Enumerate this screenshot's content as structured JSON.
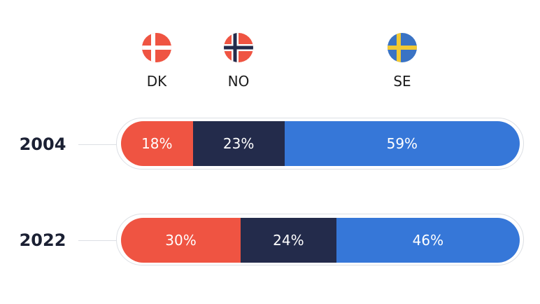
{
  "colors": {
    "DK": "#ef5442",
    "NO": "#232b4b",
    "SE": "#3677d8"
  },
  "legend": [
    {
      "code": "DK",
      "icon": "denmark-flag-icon"
    },
    {
      "code": "NO",
      "icon": "norway-flag-icon"
    },
    {
      "code": "SE",
      "icon": "sweden-flag-icon"
    }
  ],
  "chart_data": {
    "type": "bar",
    "orientation": "horizontal",
    "stacked": true,
    "normalized_percent": true,
    "categories": [
      "2004",
      "2022"
    ],
    "series": [
      {
        "name": "DK",
        "values": [
          18,
          30
        ],
        "labels": [
          "18%",
          "30%"
        ]
      },
      {
        "name": "NO",
        "values": [
          23,
          24
        ],
        "labels": [
          "23%",
          "24%"
        ]
      },
      {
        "name": "SE",
        "values": [
          59,
          46
        ],
        "labels": [
          "59%",
          "46%"
        ]
      }
    ],
    "title": "",
    "xlabel": "",
    "ylabel": "",
    "xlim": [
      0,
      100
    ],
    "grid": false,
    "legend_position": "top"
  }
}
